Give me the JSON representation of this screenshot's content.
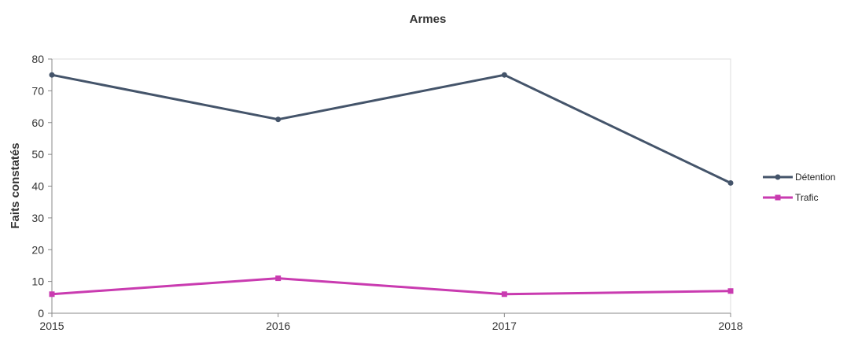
{
  "chart_data": {
    "type": "line",
    "title": "Armes",
    "xlabel": "",
    "ylabel": "Faits constatés",
    "categories": [
      "2015",
      "2016",
      "2017",
      "2018"
    ],
    "ylim": [
      0,
      80
    ],
    "yticks": [
      0,
      10,
      20,
      30,
      40,
      50,
      60,
      70,
      80
    ],
    "grid": false,
    "legend_position": "right",
    "series": [
      {
        "name": "Détention",
        "values": [
          75,
          61,
          75,
          41
        ],
        "color": "#44546A"
      },
      {
        "name": "Trafic",
        "values": [
          6,
          11,
          6,
          7
        ],
        "color": "#C93BB0"
      }
    ]
  }
}
